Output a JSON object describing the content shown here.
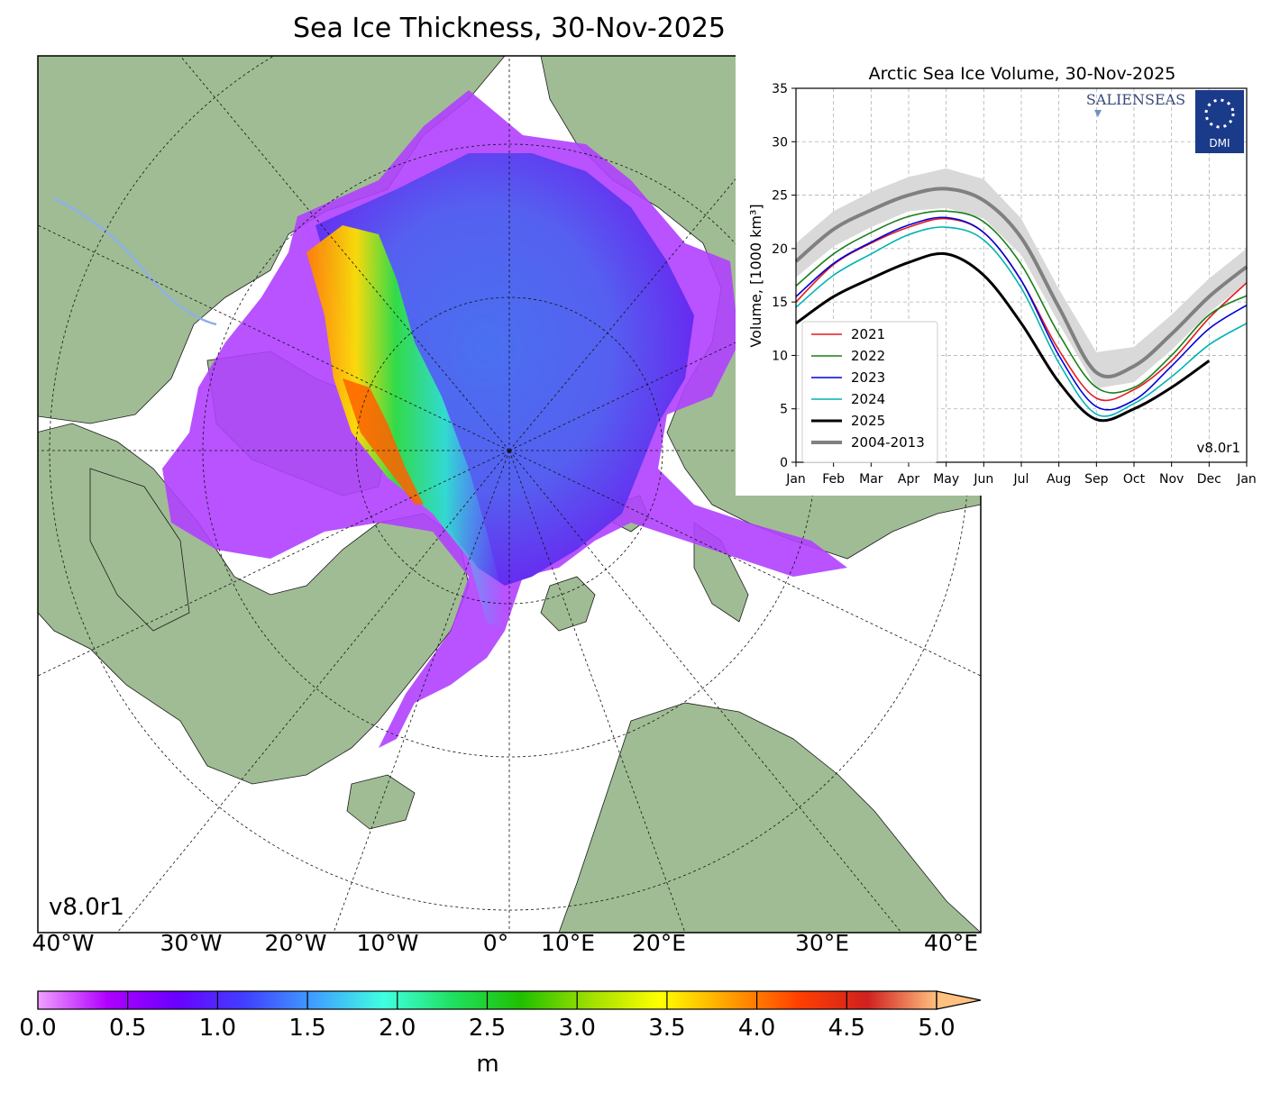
{
  "main_title": "Sea Ice Thickness, 30-Nov-2025",
  "map": {
    "version": "v8.0r1",
    "longitude_labels": [
      "40°W",
      "30°W",
      "20°W",
      "10°W",
      "0°",
      "10°E",
      "20°E",
      "30°E",
      "40°E"
    ],
    "land_color": "#a0bc94",
    "river_color": "#8fb0e8",
    "ocean_color": "#ffffff"
  },
  "colorbar": {
    "unit": "m",
    "ticks": [
      "0.0",
      "0.5",
      "1.0",
      "1.5",
      "2.0",
      "2.5",
      "3.0",
      "3.5",
      "4.0",
      "4.5",
      "5.0"
    ],
    "range": [
      0,
      5
    ],
    "extend": "max",
    "colors": [
      "#f0a0ff",
      "#b000ff",
      "#6a00ff",
      "#4040ff",
      "#40a0ff",
      "#40ffe0",
      "#20e060",
      "#20c000",
      "#a0e000",
      "#ffff00",
      "#ffa000",
      "#ff4000",
      "#d02020",
      "#ffc080"
    ]
  },
  "chart_data": {
    "type": "line",
    "title": "Arctic Sea Ice Volume, 30-Nov-2025",
    "ylabel": "Volume, [1000 km³]",
    "ylim": [
      0,
      35
    ],
    "yticks": [
      "0",
      "5",
      "10",
      "15",
      "20",
      "25",
      "30",
      "35"
    ],
    "categories": [
      "Jan",
      "Feb",
      "Mar",
      "Apr",
      "May",
      "Jun",
      "Jul",
      "Aug",
      "Sep",
      "Oct",
      "Nov",
      "Dec",
      "Jan"
    ],
    "grid": true,
    "legend_position": "lower-left",
    "version": "v8.0r1",
    "logos": [
      "SALIENSEAS",
      "DMI"
    ],
    "series": [
      {
        "name": "2021",
        "color": "#e41a1c",
        "values": [
          15.0,
          18.5,
          20.5,
          22.0,
          22.8,
          21.5,
          17.0,
          10.5,
          6.0,
          6.8,
          9.5,
          13.5,
          16.8
        ]
      },
      {
        "name": "2022",
        "color": "#1a7f1a",
        "values": [
          16.5,
          19.5,
          21.5,
          23.0,
          23.5,
          22.5,
          18.5,
          12.0,
          7.0,
          7.0,
          10.0,
          13.8,
          15.6
        ]
      },
      {
        "name": "2023",
        "color": "#0000dd",
        "values": [
          15.5,
          18.6,
          20.6,
          22.2,
          22.9,
          21.5,
          17.0,
          10.0,
          5.2,
          5.8,
          9.0,
          12.5,
          14.7
        ]
      },
      {
        "name": "2024",
        "color": "#00b3b3",
        "values": [
          14.5,
          17.5,
          19.5,
          21.3,
          22.0,
          20.8,
          16.3,
          9.3,
          4.5,
          5.5,
          8.0,
          11.0,
          13.0
        ]
      },
      {
        "name": "2025",
        "color": "#000000",
        "values": [
          13.0,
          15.5,
          17.2,
          18.7,
          19.5,
          17.5,
          13.0,
          7.5,
          4.0,
          5.0,
          7.0,
          9.5,
          null
        ]
      },
      {
        "name": "2004-2013",
        "color": "#808080",
        "values": [
          18.8,
          21.8,
          23.6,
          25.0,
          25.6,
          24.5,
          21.0,
          14.5,
          8.4,
          9.0,
          12.0,
          15.5,
          18.3
        ]
      }
    ],
    "band": {
      "color": "#d9d9d9",
      "lower": [
        17.3,
        20.2,
        22.0,
        23.5,
        23.8,
        22.8,
        19.4,
        13.0,
        6.9,
        7.5,
        10.5,
        14.0,
        16.8
      ],
      "upper": [
        20.5,
        23.5,
        25.3,
        26.7,
        27.5,
        26.5,
        22.8,
        16.2,
        10.3,
        10.8,
        13.8,
        17.2,
        20.0
      ]
    }
  }
}
